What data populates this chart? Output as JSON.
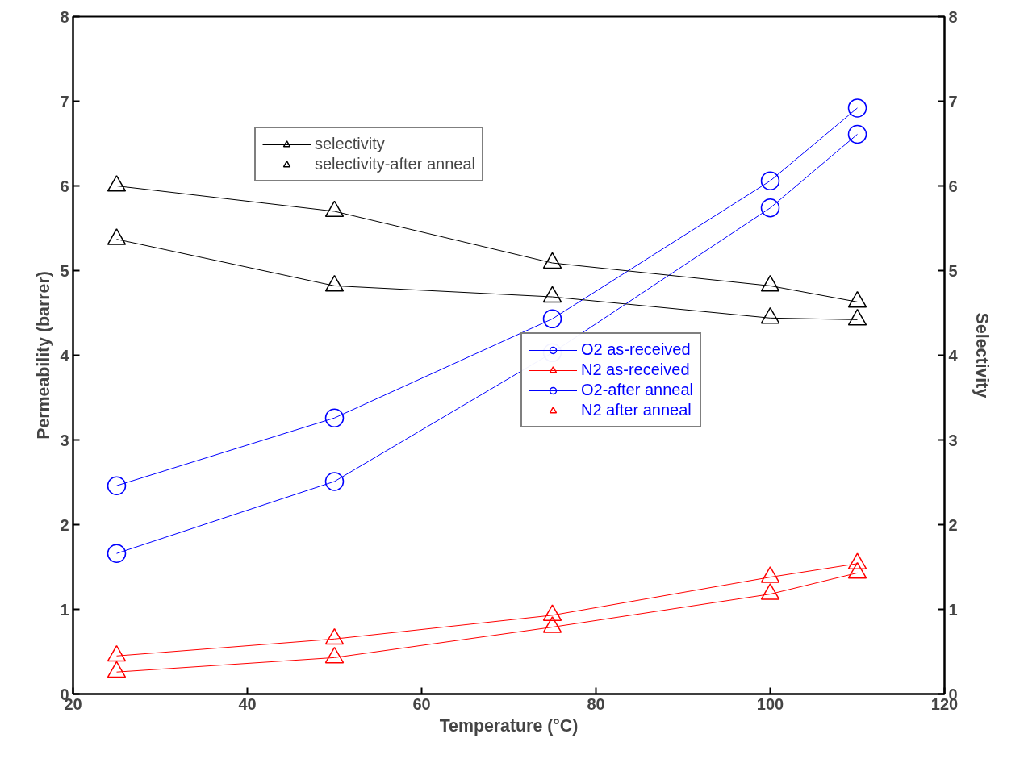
{
  "chart_data": {
    "type": "line",
    "xlabel": "Temperature (°C)",
    "ylabel": "Permeability (barrer)",
    "y2label": "Selectivity",
    "x": [
      25,
      50,
      75,
      100,
      110
    ],
    "series": [
      {
        "name": "O2 as-received",
        "color": "#0000ff",
        "marker": "circle",
        "values": [
          1.66,
          2.51,
          4.03,
          5.74,
          6.61
        ]
      },
      {
        "name": "N2 as-received",
        "color": "#ff0000",
        "marker": "triangle",
        "values": [
          0.26,
          0.43,
          0.79,
          1.18,
          1.43
        ]
      },
      {
        "name": "O2-after anneal",
        "color": "#0000ff",
        "marker": "circle",
        "values": [
          2.46,
          3.26,
          4.43,
          6.06,
          6.92
        ]
      },
      {
        "name": "N2 after anneal",
        "color": "#ff0000",
        "marker": "triangle",
        "values": [
          0.45,
          0.65,
          0.93,
          1.38,
          1.54
        ]
      },
      {
        "name": "selectivity",
        "color": "#000000",
        "marker": "triangle",
        "axis": "y2",
        "values": [
          6.0,
          5.7,
          5.09,
          4.82,
          4.63
        ]
      },
      {
        "name": "selectivity-after anneal",
        "color": "#000000",
        "marker": "triangle",
        "axis": "y2",
        "values": [
          5.37,
          4.82,
          4.69,
          4.44,
          4.42
        ]
      }
    ],
    "xlim": [
      20,
      120
    ],
    "xticks": [
      20,
      40,
      60,
      80,
      100,
      120
    ],
    "ylim": [
      0,
      8
    ],
    "yticks": [
      0,
      1,
      2,
      3,
      4,
      5,
      6,
      7,
      8
    ],
    "y2lim": [
      0,
      8
    ],
    "y2ticks": [
      0,
      1,
      2,
      3,
      4,
      5,
      6,
      7,
      8
    ],
    "grid": false,
    "legend": "right",
    "line_style": "solid"
  }
}
